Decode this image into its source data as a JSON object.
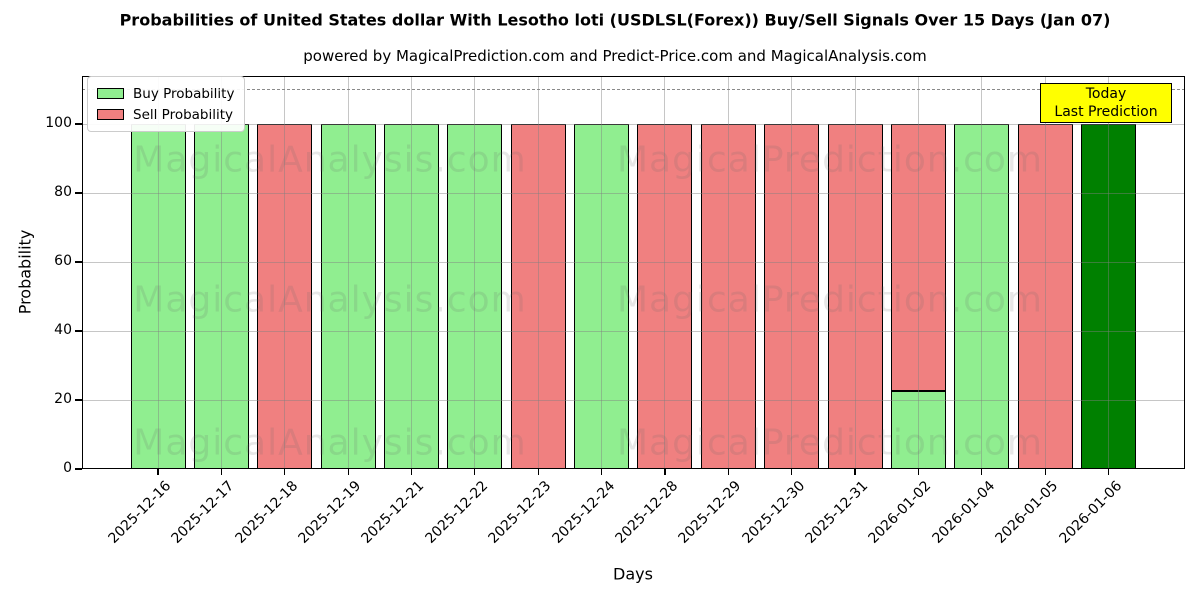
{
  "chart_data": {
    "type": "bar",
    "stacked": true,
    "title": "Probabilities of United States dollar With Lesotho loti (USDLSL(Forex)) Buy/Sell Signals Over 15 Days (Jan 07)",
    "subtitle": "powered by MagicalPrediction.com and Predict-Price.com and MagicalAnalysis.com",
    "xlabel": "Days",
    "ylabel": "Probability",
    "ylim": [
      0,
      114
    ],
    "yticks": [
      0,
      20,
      40,
      60,
      80,
      100
    ],
    "grid": true,
    "legend_position": "upper left",
    "dashed_line_y": 110,
    "categories": [
      "2025-12-16",
      "2025-12-17",
      "2025-12-18",
      "2025-12-19",
      "2025-12-21",
      "2025-12-22",
      "2025-12-23",
      "2025-12-24",
      "2025-12-28",
      "2025-12-29",
      "2025-12-30",
      "2025-12-31",
      "2026-01-02",
      "2026-01-04",
      "2026-01-05",
      "2026-01-06"
    ],
    "series": [
      {
        "name": "Buy Probability",
        "color": "#90ee90",
        "values": [
          100,
          100,
          0,
          100,
          100,
          100,
          0,
          100,
          0,
          0,
          0,
          0,
          22.5,
          100,
          0,
          0
        ]
      },
      {
        "name": "Sell Probability",
        "color": "#f08080",
        "values": [
          0,
          0,
          100,
          0,
          0,
          0,
          100,
          0,
          100,
          100,
          100,
          100,
          77.5,
          0,
          100,
          0
        ]
      },
      {
        "name": "Today Last Prediction",
        "color": "#008000",
        "values": [
          0,
          0,
          0,
          0,
          0,
          0,
          0,
          0,
          0,
          0,
          0,
          0,
          0,
          0,
          0,
          100
        ]
      }
    ]
  },
  "legend": {
    "items": [
      {
        "label": "Buy Probability",
        "color": "#90ee90"
      },
      {
        "label": "Sell Probability",
        "color": "#f08080"
      }
    ]
  },
  "annotation": {
    "line1": "Today",
    "line2": "Last Prediction",
    "bg_color": "#ffff00"
  },
  "watermark": {
    "left_text": "MagicalAnalysis.com",
    "right_text": "MagicalPrediction.com"
  }
}
